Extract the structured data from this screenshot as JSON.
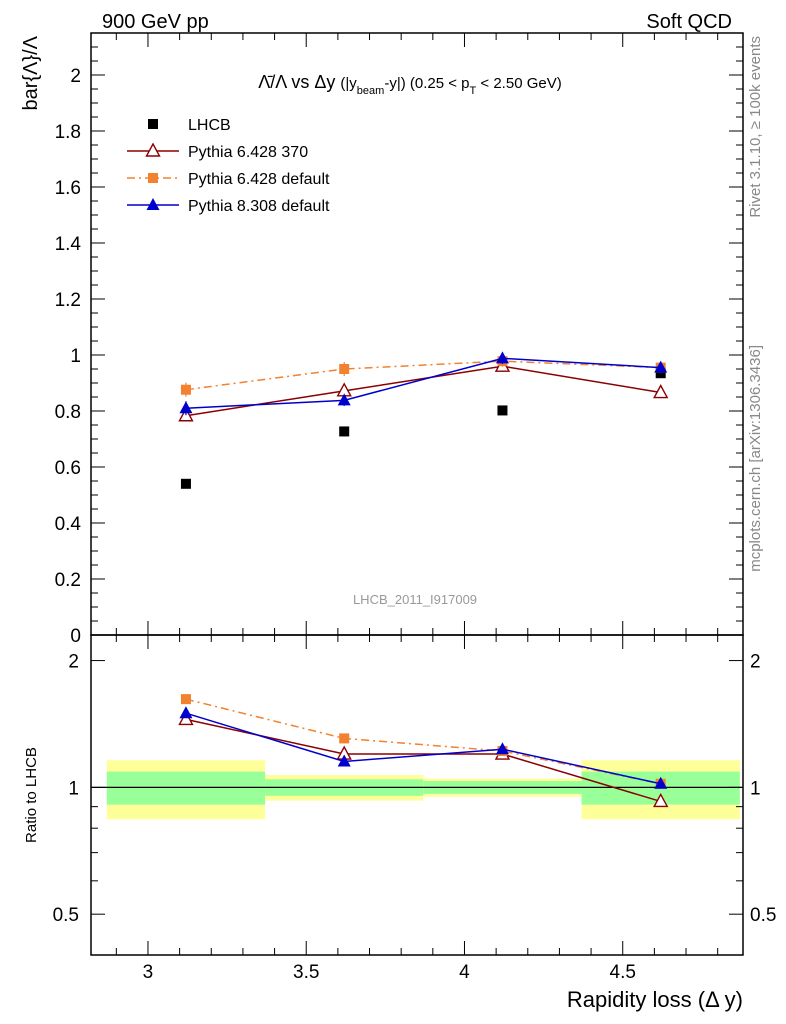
{
  "header": {
    "left": "900 GeV pp",
    "right": "Soft QCD"
  },
  "side_text": {
    "rivet": "Rivet 3.1.10, ≥ 100k events",
    "mcplots": "mcplots.cern.ch [arXiv:1306.3436]"
  },
  "chart_data": {
    "type": "scatter",
    "title": {
      "main": "Λ̄/Λ vs Δy",
      "detail_prefix": "(|y",
      "detail_sub1": "beam",
      "detail_mid": "-y|) (0.25 < p",
      "detail_sub2": "T",
      "detail_suffix": " < 2.50 GeV)"
    },
    "watermark": "LHCB_2011_I917009",
    "xlabel": "Rapidity loss (Δ y)",
    "ylabel": "bar{Λ}/Λ",
    "ratio_ylabel": "Ratio to LHCB",
    "xlim": [
      2.82,
      4.88
    ],
    "ylim": [
      0,
      2.15
    ],
    "ratio_ylim": [
      0.4,
      2.3
    ],
    "ratio_scale": "log",
    "x_ticks": [
      "3",
      "3.5",
      "4",
      "4.5"
    ],
    "y_ticks": [
      "0",
      "0.2",
      "0.4",
      "0.6",
      "0.8",
      "1",
      "1.2",
      "1.4",
      "1.6",
      "1.8",
      "2"
    ],
    "ratio_ticks": [
      "0.5",
      "1",
      "2"
    ],
    "legend_position": "top-left",
    "x": [
      3.12,
      3.62,
      4.12,
      4.62
    ],
    "bins": [
      [
        2.87,
        3.37
      ],
      [
        3.37,
        3.87
      ],
      [
        3.87,
        4.37
      ],
      [
        4.37,
        4.87
      ]
    ],
    "series": [
      {
        "name": "LHCB",
        "color": "#000000",
        "marker": "square",
        "line": "none",
        "values": [
          0.54,
          0.727,
          0.802,
          0.935
        ],
        "ratio_band_inner": [
          0.09,
          0.045,
          0.035,
          0.09
        ],
        "ratio_band_outer": [
          0.16,
          0.07,
          0.05,
          0.16
        ]
      },
      {
        "name": "Pythia 6.428 370",
        "color": "#8b0000",
        "marker": "open-triangle",
        "line": "solid",
        "values": [
          0.783,
          0.872,
          0.96,
          0.866
        ],
        "errors": [
          0.02,
          0.02,
          0.02,
          0.02
        ],
        "ratio": [
          1.45,
          1.2,
          1.2,
          0.926
        ]
      },
      {
        "name": "Pythia 6.428 default",
        "color": "#f28130",
        "marker": "square",
        "line": "dashdot",
        "values": [
          0.876,
          0.95,
          0.978,
          0.955
        ],
        "errors": [
          0.025,
          0.025,
          0.02,
          0.02
        ],
        "ratio": [
          1.62,
          1.307,
          1.22,
          1.02
        ]
      },
      {
        "name": "Pythia 8.308 default",
        "color": "#0000cc",
        "marker": "filled-triangle",
        "line": "solid",
        "values": [
          0.81,
          0.838,
          0.988,
          0.955
        ],
        "errors": [
          0.025,
          0.02,
          0.02,
          0.02
        ],
        "ratio": [
          1.5,
          1.152,
          1.232,
          1.02
        ]
      }
    ]
  }
}
